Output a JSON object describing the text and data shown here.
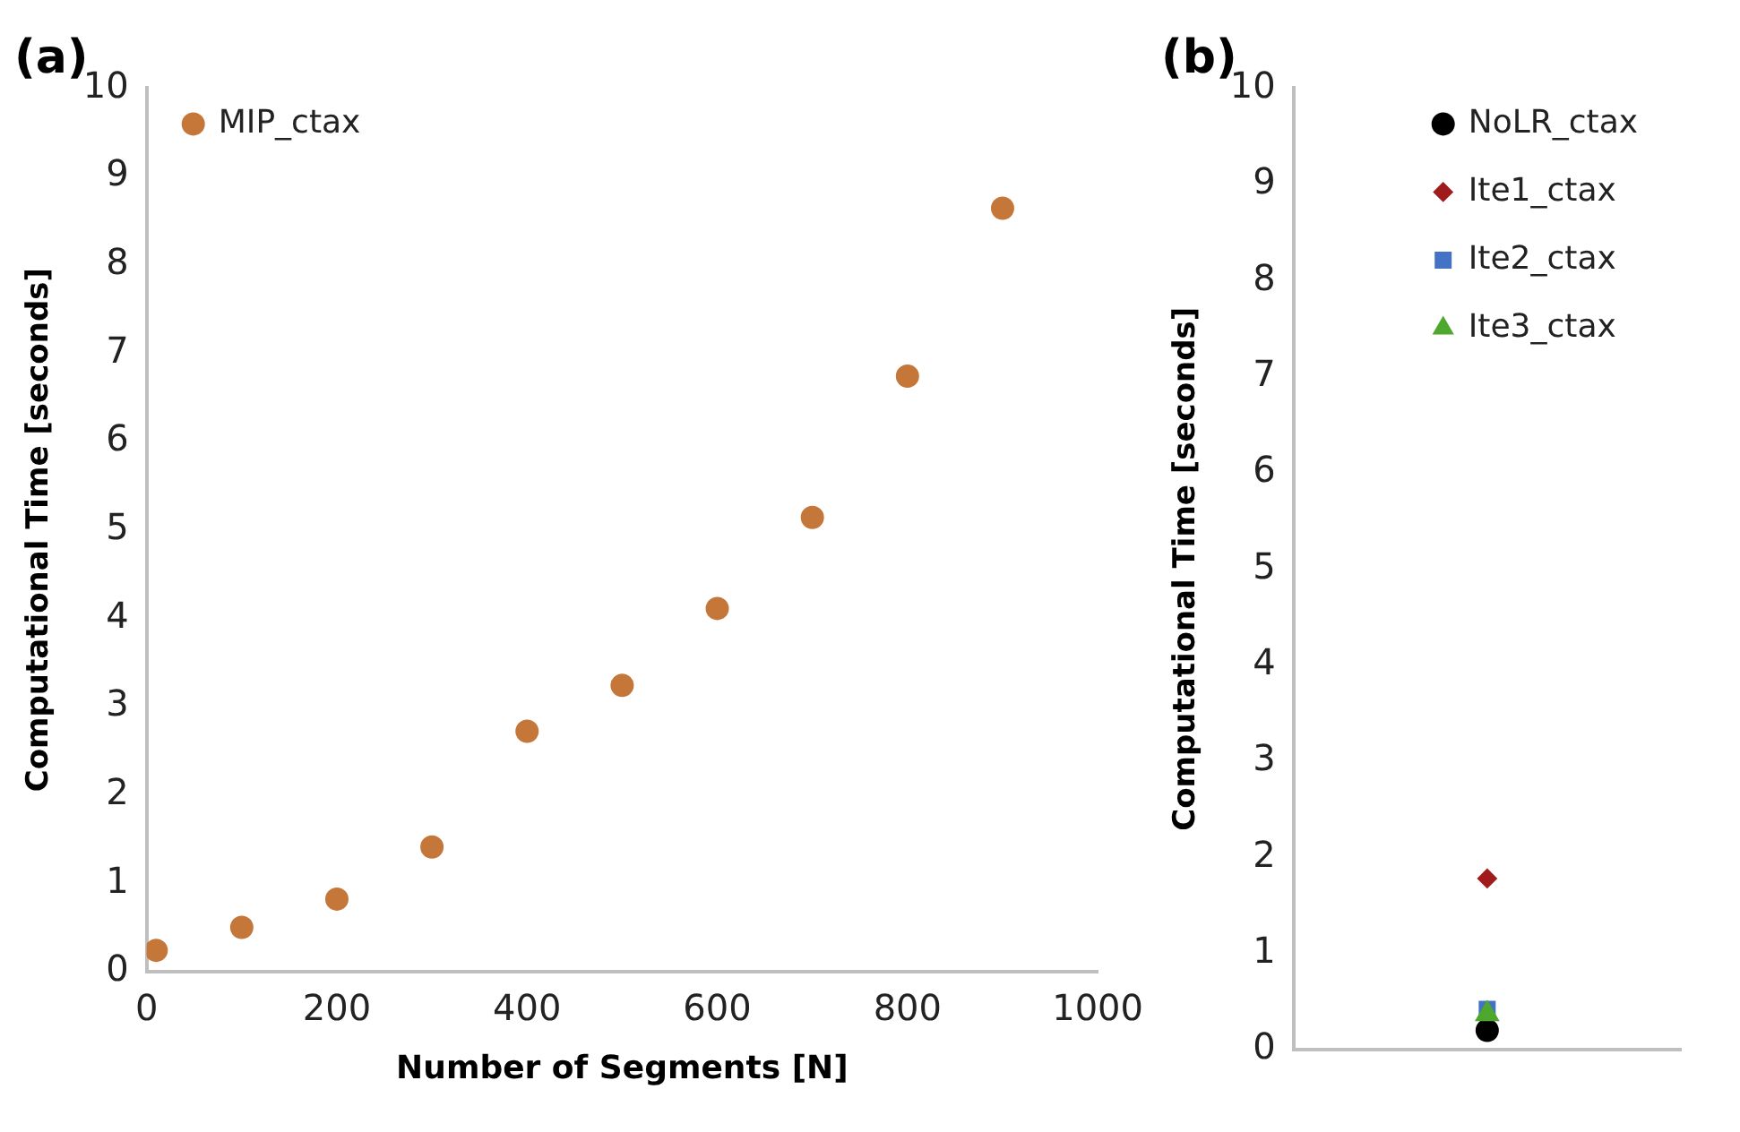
{
  "chart_data": [
    {
      "type": "scatter",
      "title": "(a)",
      "xlabel": "Number of Segments [N]",
      "ylabel": "Computational Time [seconds]",
      "x": [
        10,
        100,
        200,
        300,
        400,
        500,
        600,
        700,
        800,
        900
      ],
      "xlim": [
        0,
        1000
      ],
      "xticks": [
        0,
        200,
        400,
        600,
        800,
        1000
      ],
      "ylim": [
        0,
        10
      ],
      "yticks": [
        0,
        1,
        2,
        3,
        4,
        5,
        6,
        7,
        8,
        9,
        10
      ],
      "grid": false,
      "legend": "top left",
      "marker": "circle",
      "series": [
        {
          "name": "MIP_ctax",
          "color": "#c5773a",
          "values": [
            0.24,
            0.5,
            0.82,
            1.41,
            2.72,
            3.24,
            4.11,
            5.14,
            6.74,
            8.64
          ]
        }
      ]
    },
    {
      "type": "scatter",
      "title": "(b)",
      "ylabel": "Computational Time [seconds]",
      "categories": [
        null
      ],
      "ylim": [
        0,
        10
      ],
      "yticks": [
        0,
        1,
        2,
        3,
        4,
        5,
        6,
        7,
        8,
        9,
        10
      ],
      "grid": false,
      "legend": "top right",
      "tick_labels": "y",
      "series": [
        {
          "name": "NoLR_ctax",
          "color": "#000000",
          "marker": "circle",
          "values": [
            0.2
          ]
        },
        {
          "name": "Ite1_ctax",
          "color": "#a01c1c",
          "marker": "diamond",
          "values": [
            1.78
          ]
        },
        {
          "name": "Ite2_ctax",
          "color": "#4472c4",
          "marker": "square",
          "values": [
            0.42
          ]
        },
        {
          "name": "Ite3_ctax",
          "color": "#4ea72e",
          "marker": "triangle",
          "values": [
            0.37
          ]
        }
      ]
    }
  ]
}
